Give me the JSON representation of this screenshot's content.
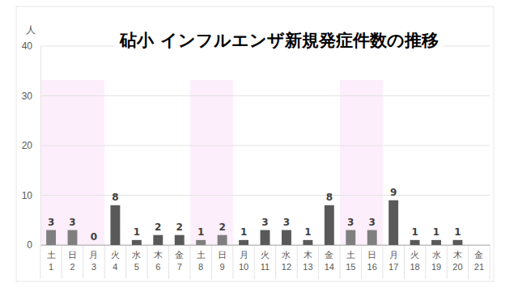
{
  "chart_data": {
    "type": "bar",
    "title": "砧小 インフルエンザ新規発症件数の推移",
    "y_label": "人",
    "categories": [
      "土\n1",
      "日\n2",
      "月\n3",
      "火\n4",
      "水\n5",
      "木\n6",
      "金\n7",
      "土\n8",
      "日\n9",
      "月\n10",
      "火\n11",
      "水\n12",
      "木\n13",
      "金\n14",
      "土\n15",
      "日\n16",
      "月\n17",
      "火\n18",
      "水\n19",
      "木\n20",
      "金\n21"
    ],
    "values": [
      3,
      3,
      0,
      8,
      1,
      2,
      2,
      1,
      2,
      1,
      3,
      3,
      1,
      8,
      3,
      3,
      9,
      1,
      1,
      1,
      null
    ],
    "colors": [
      "#7f7f7f",
      "#7f7f7f",
      "#7f7f7f",
      "#595959",
      "#595959",
      "#595959",
      "#595959",
      "#7f7f7f",
      "#7f7f7f",
      "#595959",
      "#595959",
      "#595959",
      "#595959",
      "#595959",
      "#7f7f7f",
      "#7f7f7f",
      "#595959",
      "#595959",
      "#595959",
      "#595959",
      "#595959"
    ],
    "ylim": [
      0,
      40
    ],
    "yticks": [
      0,
      10,
      20,
      30,
      40
    ],
    "grid": true,
    "data_labels": true
  }
}
